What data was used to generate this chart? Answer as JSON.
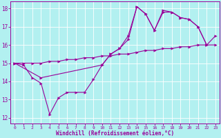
{
  "xlabel": "Windchill (Refroidissement éolien,°C)",
  "bg_color": "#b2f0f0",
  "line_color": "#990099",
  "grid_color": "#ffffff",
  "xmin": -0.5,
  "xmax": 23.5,
  "ymin": 11.7,
  "ymax": 18.4,
  "yticks": [
    12,
    13,
    14,
    15,
    16,
    17,
    18
  ],
  "xticks": [
    0,
    1,
    2,
    3,
    4,
    5,
    6,
    7,
    8,
    9,
    10,
    11,
    12,
    13,
    14,
    15,
    16,
    17,
    18,
    19,
    20,
    21,
    22,
    23
  ],
  "line1_x": [
    0,
    1,
    2,
    3,
    4,
    5,
    6,
    7,
    8,
    9,
    10,
    11,
    12,
    13,
    14,
    15,
    16,
    17,
    18,
    19,
    20,
    21,
    22
  ],
  "line1_y": [
    15.0,
    14.9,
    14.2,
    13.9,
    12.2,
    13.1,
    13.4,
    13.4,
    13.4,
    14.1,
    14.9,
    15.5,
    15.8,
    16.3,
    18.1,
    17.7,
    16.8,
    17.8,
    17.8,
    17.5,
    17.4,
    17.0,
    16.0
  ],
  "line2_x": [
    0,
    1,
    2,
    3,
    4,
    5,
    6,
    7,
    8,
    9,
    10,
    11,
    12,
    13,
    14,
    15,
    16,
    17,
    18,
    19,
    20,
    21,
    22,
    23
  ],
  "line2_y": [
    15.0,
    15.0,
    15.0,
    15.0,
    15.1,
    15.1,
    15.2,
    15.2,
    15.3,
    15.3,
    15.4,
    15.4,
    15.5,
    15.5,
    15.6,
    15.7,
    15.7,
    15.8,
    15.8,
    15.9,
    15.9,
    16.0,
    16.0,
    16.0
  ],
  "line3_x": [
    0,
    3,
    10,
    11,
    12,
    13,
    14,
    15,
    16,
    17,
    18,
    19,
    20,
    21,
    22,
    23
  ],
  "line3_y": [
    15.0,
    14.2,
    14.9,
    15.5,
    15.8,
    16.5,
    18.1,
    17.7,
    16.8,
    17.9,
    17.8,
    17.5,
    17.4,
    17.0,
    16.0,
    16.5
  ]
}
